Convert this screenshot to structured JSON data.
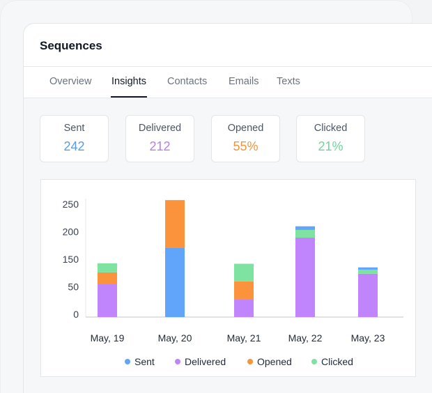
{
  "header": {
    "title": "Sequences"
  },
  "tabs": [
    {
      "label": "Overview"
    },
    {
      "label": "Insights",
      "active": true
    },
    {
      "label": "Contacts"
    },
    {
      "label": "Emails"
    },
    {
      "label": "Texts"
    }
  ],
  "stats": [
    {
      "label": "Sent",
      "value": "242",
      "color": "#5b9be6"
    },
    {
      "label": "Delivered",
      "value": "212",
      "color": "#b57ee8"
    },
    {
      "label": "Opened",
      "value": "55%",
      "color": "#ef9540"
    },
    {
      "label": "Clicked",
      "value": "21%",
      "color": "#6fd49c"
    }
  ],
  "chart_data": {
    "type": "bar",
    "stacked": true,
    "categories": [
      "May, 19",
      "May, 20",
      "May, 21",
      "May, 22",
      "May, 23"
    ],
    "y_tick_labels": [
      "0",
      "50",
      "150",
      "200",
      "250"
    ],
    "ylim": [
      0,
      250
    ],
    "legend_position": "bottom",
    "colors": {
      "Sent": "#60a5fa",
      "Delivered": "#c084fc",
      "Opened": "#fb923c",
      "Clicked": "#7ee2a0"
    },
    "series": [
      {
        "name": "Sent",
        "values": [
          0,
          154,
          0,
          8,
          5
        ]
      },
      {
        "name": "Delivered",
        "values": [
          74,
          0,
          40,
          176,
          96
        ]
      },
      {
        "name": "Opened",
        "values": [
          25,
          105,
          39,
          0,
          0
        ]
      },
      {
        "name": "Clicked",
        "values": [
          20,
          0,
          39,
          17,
          9
        ]
      }
    ],
    "stack_order": [
      [
        "Delivered",
        "Opened",
        "Clicked"
      ],
      [
        "Sent",
        "Opened"
      ],
      [
        "Delivered",
        "Opened",
        "Clicked"
      ],
      [
        "Delivered",
        "Clicked",
        "Sent"
      ],
      [
        "Delivered",
        "Clicked",
        "Sent"
      ]
    ],
    "legend": [
      "Sent",
      "Delivered",
      "Opened",
      "Clicked"
    ]
  }
}
